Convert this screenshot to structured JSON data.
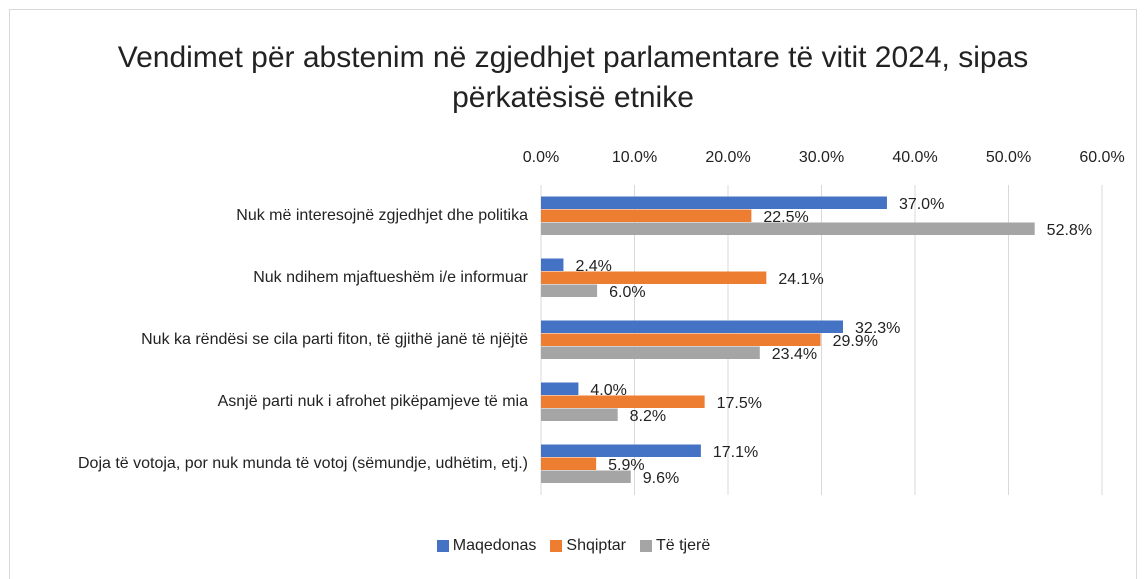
{
  "chart_data": {
    "type": "hbar",
    "title": "Vendimet për abstenim në zgjedhjet parlamentare të vitit 2024, sipas përkatësisë etnike",
    "categories": [
      "Nuk më interesojnë zgjedhjet dhe politika",
      "Nuk ndihem mjaftueshëm i/e informuar",
      "Nuk ka rëndësi se cila parti fiton, të gjithë janë të njëjtë",
      "Asnjë parti nuk i afrohet pikëpamjeve të mia",
      "Doja të votoja, por nuk munda të votoj (sëmundje, udhëtim, etj.)"
    ],
    "series": [
      {
        "name": "Maqedonas",
        "color": "#4472c4",
        "values": [
          37.0,
          2.4,
          32.3,
          4.0,
          17.1
        ],
        "value_labels": [
          "37.0%",
          "2.4%",
          "32.3%",
          "4.0%",
          "17.1%"
        ]
      },
      {
        "name": "Shqiptar",
        "color": "#ed7d31",
        "values": [
          22.5,
          24.1,
          29.9,
          17.5,
          5.9
        ],
        "value_labels": [
          "22.5%",
          "24.1%",
          "29.9%",
          "17.5%",
          "5.9%"
        ]
      },
      {
        "name": "Të tjerë",
        "color": "#a5a5a5",
        "values": [
          52.8,
          6.0,
          23.4,
          8.2,
          9.6
        ],
        "value_labels": [
          "52.8%",
          "6.0%",
          "23.4%",
          "8.2%",
          "9.6%"
        ]
      }
    ],
    "xlim": [
      0,
      60
    ],
    "xticks": [
      {
        "value": 0,
        "label": "0.0%"
      },
      {
        "value": 10,
        "label": "10.0%"
      },
      {
        "value": 20,
        "label": "20.0%"
      },
      {
        "value": 30,
        "label": "30.0%"
      },
      {
        "value": 40,
        "label": "40.0%"
      },
      {
        "value": 50,
        "label": "50.0%"
      },
      {
        "value": 60,
        "label": "60.0%"
      }
    ],
    "grid": true,
    "legend": "bottom"
  }
}
